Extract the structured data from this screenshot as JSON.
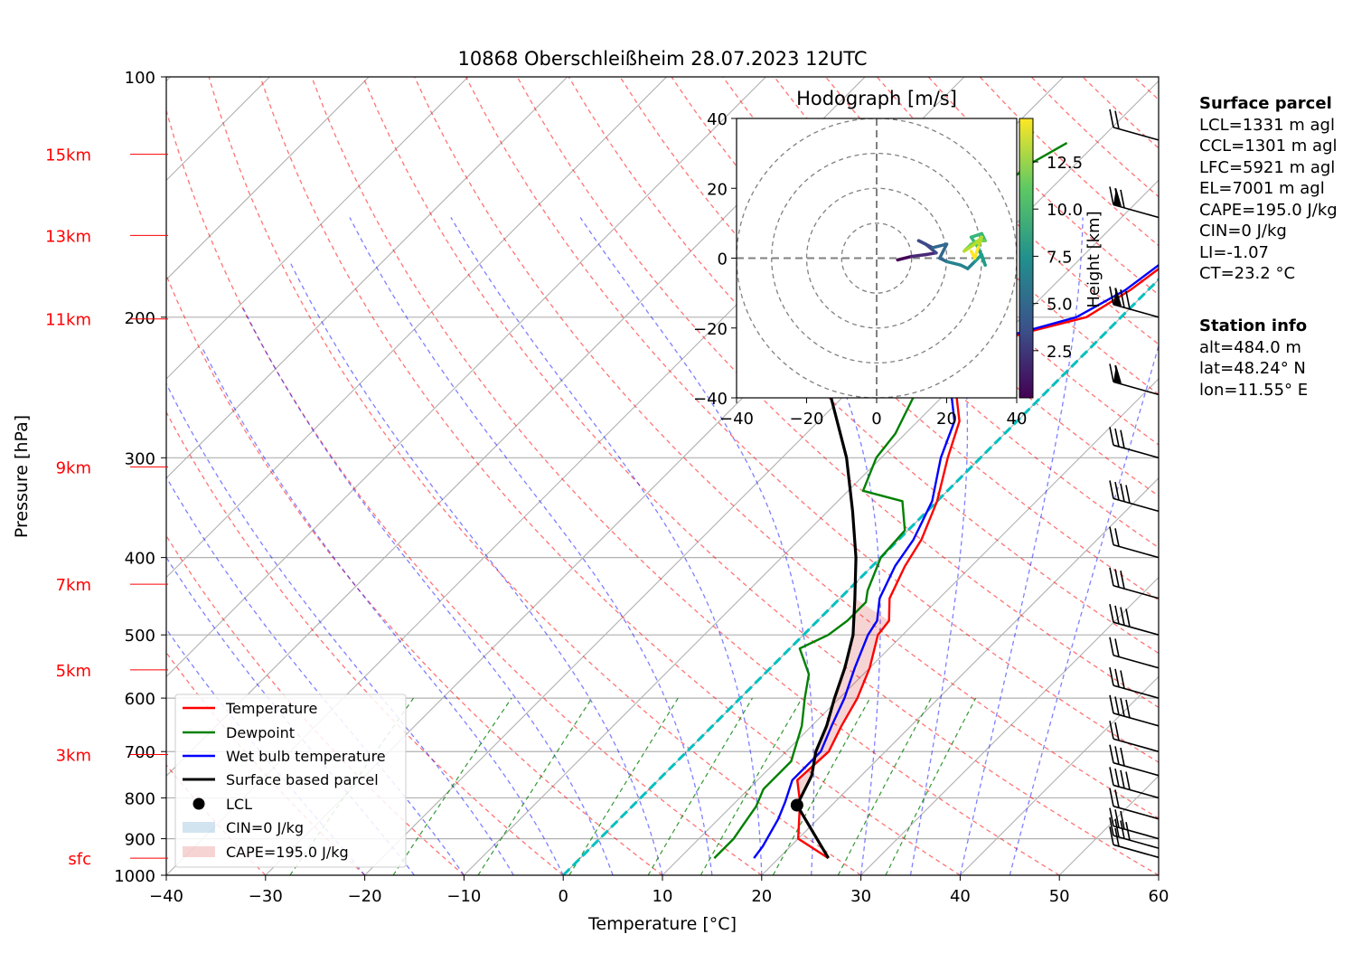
{
  "chart_data": {
    "type": "line",
    "title": "10868 Oberschleißheim 28.07.2023 12UTC",
    "xlabel": "Temperature [°C]",
    "ylabel": "Pressure [hPa]",
    "xlim": [
      -40,
      60
    ],
    "ylim": [
      1000,
      100
    ],
    "y_log": true,
    "skew": "skew-T log-p diagram",
    "grid": true,
    "x_ticks": [
      -40,
      -30,
      -20,
      -10,
      0,
      10,
      20,
      30,
      40,
      50,
      60
    ],
    "x_tick_labels": [
      "−40",
      "−30",
      "−20",
      "−10",
      "0",
      "10",
      "20",
      "30",
      "40",
      "50",
      "60"
    ],
    "p_ticks": [
      100,
      200,
      300,
      400,
      500,
      600,
      700,
      800,
      900,
      1000
    ],
    "p_tick_labels": [
      "100",
      "200",
      "300",
      "400",
      "500",
      "600",
      "700",
      "800",
      "900",
      "1000"
    ],
    "height_markers": [
      {
        "label": "15km",
        "p": 125
      },
      {
        "label": "13km",
        "p": 158
      },
      {
        "label": "11km",
        "p": 201
      },
      {
        "label": "9km",
        "p": 308
      },
      {
        "label": "7km",
        "p": 432
      },
      {
        "label": "5km",
        "p": 553
      },
      {
        "label": "3km",
        "p": 706
      },
      {
        "label": "sfc",
        "p": 952
      }
    ],
    "series": [
      {
        "name": "Temperature",
        "color": "#ff0000",
        "points": [
          [
            25,
            952
          ],
          [
            20,
            900
          ],
          [
            16.5,
            810
          ],
          [
            14,
            760
          ],
          [
            14.3,
            700
          ],
          [
            13,
            650
          ],
          [
            11.8,
            600
          ],
          [
            10,
            550
          ],
          [
            7.5,
            500
          ],
          [
            7.2,
            480
          ],
          [
            5,
            450
          ],
          [
            3.3,
            410
          ],
          [
            2.3,
            380
          ],
          [
            0,
            340
          ],
          [
            -3.3,
            300
          ],
          [
            -5.8,
            270
          ],
          [
            -8.8,
            250
          ],
          [
            -10.6,
            235
          ],
          [
            -11,
            225
          ],
          [
            -8.5,
            210
          ],
          [
            -3.5,
            200
          ],
          [
            -1.8,
            185
          ],
          [
            -0.8,
            170
          ],
          [
            -0.8,
            158
          ],
          [
            0.5,
            145
          ],
          [
            0,
            135
          ],
          [
            2,
            128
          ],
          [
            5,
            121
          ],
          [
            7,
            116
          ]
        ]
      },
      {
        "name": "Dewpoint",
        "color": "#008000",
        "points": [
          [
            13.5,
            952
          ],
          [
            13.5,
            900
          ],
          [
            13,
            860
          ],
          [
            12.5,
            820
          ],
          [
            11.5,
            780
          ],
          [
            11.5,
            720
          ],
          [
            9,
            650
          ],
          [
            6.5,
            600
          ],
          [
            4.5,
            560
          ],
          [
            1,
            520
          ],
          [
            2.5,
            500
          ],
          [
            3,
            480
          ],
          [
            3,
            455
          ],
          [
            2,
            440
          ],
          [
            0,
            400
          ],
          [
            -0.3,
            370
          ],
          [
            -3.5,
            340
          ],
          [
            -8.5,
            330
          ],
          [
            -10.5,
            300
          ],
          [
            -11,
            280
          ],
          [
            -13,
            250
          ],
          [
            -16,
            225
          ],
          [
            -20,
            210
          ],
          [
            -23,
            200
          ],
          [
            -26,
            198
          ],
          [
            -27,
            185
          ],
          [
            -28.5,
            175
          ],
          [
            -26,
            165
          ],
          [
            -28.5,
            155
          ],
          [
            -27,
            145
          ],
          [
            -25,
            135
          ],
          [
            -24.5,
            128
          ],
          [
            -23,
            121
          ]
        ]
      },
      {
        "name": "Wet bulb temperature",
        "color": "#0000ff",
        "points": [
          [
            17.5,
            952
          ],
          [
            17.2,
            920
          ],
          [
            16,
            850
          ],
          [
            15,
            810
          ],
          [
            13.5,
            760
          ],
          [
            13.5,
            700
          ],
          [
            12,
            650
          ],
          [
            10.5,
            600
          ],
          [
            8.5,
            550
          ],
          [
            6.5,
            500
          ],
          [
            6,
            480
          ],
          [
            4,
            450
          ],
          [
            2.3,
            410
          ],
          [
            1.5,
            380
          ],
          [
            -0.5,
            340
          ],
          [
            -4,
            300
          ],
          [
            -6.3,
            270
          ],
          [
            -9.3,
            250
          ],
          [
            -11,
            235
          ],
          [
            -11.5,
            225
          ],
          [
            -9,
            210
          ],
          [
            -4.5,
            200
          ],
          [
            -2.3,
            185
          ],
          [
            -1.3,
            170
          ],
          [
            -1.3,
            158
          ],
          [
            0.1,
            145
          ],
          [
            -0.4,
            135
          ],
          [
            1.6,
            128
          ],
          [
            4.6,
            121
          ],
          [
            6.8,
            116
          ]
        ]
      },
      {
        "name": "Surface based parcel",
        "color": "#000000",
        "points": [
          [
            25,
            952
          ],
          [
            16.5,
            817
          ],
          [
            15,
            750
          ],
          [
            13,
            700
          ],
          [
            11.5,
            650
          ],
          [
            9.5,
            600
          ],
          [
            7.5,
            550
          ],
          [
            5,
            500
          ],
          [
            1.5,
            450
          ],
          [
            -2.5,
            400
          ],
          [
            -7.5,
            350
          ],
          [
            -13.5,
            300
          ],
          [
            -21.5,
            250
          ],
          [
            -31,
            200
          ],
          [
            -37,
            175
          ],
          [
            -44,
            150
          ],
          [
            -51,
            130
          ],
          [
            -56,
            120
          ]
        ]
      }
    ],
    "lcl": {
      "t": 16.5,
      "p": 817
    },
    "cape_label": "CAPE=195.0 J/kg",
    "cin_label": "CIN=0 J/kg",
    "zero_isotherm_color": "#00c0c0",
    "legend": [
      "Temperature",
      "Dewpoint",
      "Wet bulb temperature",
      "Surface based parcel",
      "LCL",
      "CIN=0 J/kg",
      "CAPE=195.0 J/kg"
    ],
    "legend_position": "lower-left",
    "wind_barbs_p": [
      120,
      150,
      200,
      250,
      300,
      350,
      400,
      450,
      500,
      550,
      600,
      650,
      700,
      750,
      800,
      850,
      900,
      925,
      950
    ],
    "hodograph": {
      "title": "Hodograph [m/s]",
      "xlim": [
        -40,
        40
      ],
      "ylim": [
        -40,
        40
      ],
      "ticks": [
        -40,
        -20,
        0,
        20,
        40
      ],
      "tick_labels": [
        "−40",
        "−20",
        "0",
        "20",
        "40"
      ],
      "rings": [
        10,
        20,
        30,
        40
      ],
      "colorbar_label": "Height [km]",
      "colorbar_ticks": [
        2.5,
        5.0,
        7.5,
        10.0,
        12.5
      ],
      "colorbar_tick_labels": [
        "2.5",
        "5.0",
        "7.5",
        "10.0",
        "12.5"
      ],
      "height_range": [
        0,
        14.8
      ],
      "trace": [
        [
          6,
          -0.5,
          0.5
        ],
        [
          10,
          0.5,
          1
        ],
        [
          14,
          1,
          1.8
        ],
        [
          17,
          1.5,
          2.5
        ],
        [
          14,
          4,
          3
        ],
        [
          12,
          5,
          3.5
        ],
        [
          16,
          3,
          4
        ],
        [
          20,
          4,
          4.5
        ],
        [
          18,
          0,
          5
        ],
        [
          20,
          -1,
          5.5
        ],
        [
          24,
          -2,
          6
        ],
        [
          26,
          -3,
          6.5
        ],
        [
          28,
          -1,
          7
        ],
        [
          30,
          1,
          7.5
        ],
        [
          31,
          -2,
          8
        ],
        [
          29,
          3,
          8.5
        ],
        [
          27,
          6,
          9
        ],
        [
          30,
          7,
          9.5
        ],
        [
          31,
          5,
          10
        ],
        [
          29,
          5,
          10.5
        ],
        [
          27,
          4,
          11
        ],
        [
          25,
          2,
          11.5
        ],
        [
          28,
          4,
          12
        ],
        [
          30,
          6,
          12.5
        ],
        [
          29,
          3,
          13
        ],
        [
          28,
          0,
          13.5
        ],
        [
          27,
          2,
          14
        ]
      ]
    }
  },
  "info": {
    "parcel_title": "Surface parcel",
    "parcel_lines": [
      "LCL=1331 m agl",
      "CCL=1301 m agl",
      "LFC=5921 m agl",
      "EL=7001 m agl",
      "CAPE=195.0 J/kg",
      "CIN=0 J/kg",
      "LI=-1.07",
      "CT=23.2 °C"
    ],
    "station_title": "Station info",
    "station_lines": [
      "alt=484.0 m",
      "lat=48.24° N",
      "lon=11.55° E"
    ]
  }
}
